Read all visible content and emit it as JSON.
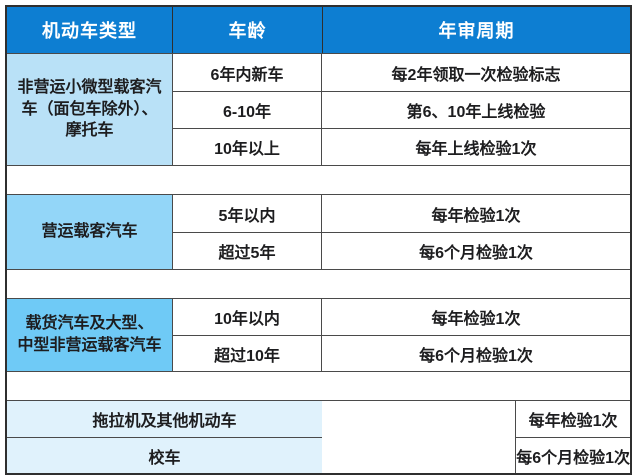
{
  "chart_data": {
    "type": "table",
    "columns": [
      "机动车类型",
      "车龄",
      "年审周期"
    ],
    "groups": [
      {
        "category": "非营运小微型载客汽\n车（面包车除外）、\n摩托车",
        "rows": [
          {
            "age": "6年内新车",
            "cycle": "每2年领取一次检验标志"
          },
          {
            "age": "6-10年",
            "cycle": "第6、10年上线检验"
          },
          {
            "age": "10年以上",
            "cycle": "每年上线检验1次"
          }
        ]
      },
      {
        "category": "营运载客汽车",
        "rows": [
          {
            "age": "5年以内",
            "cycle": "每年检验1次"
          },
          {
            "age": "超过5年",
            "cycle": "每6个月检验1次"
          }
        ]
      },
      {
        "category": "载货汽车及大型、\n中型非营运载客汽车",
        "rows": [
          {
            "age": "10年以内",
            "cycle": "每年检验1次"
          },
          {
            "age": "超过10年",
            "cycle": "每6个月检验1次"
          }
        ]
      }
    ],
    "merged_rows": [
      {
        "category": "拖拉机及其他机动车",
        "cycle": "每年检验1次"
      },
      {
        "category": "校车",
        "cycle": "每6个月检验1次"
      }
    ],
    "layout": {
      "grid": "on",
      "legend": "none"
    }
  },
  "colors": {
    "header_bg": "#0d7ed2",
    "header_text": "#ffffff",
    "group1_bg": "#b9e1f7",
    "group2_bg": "#93d6f8",
    "group3_bg": "#6fcaf6",
    "merged_bg": "#e0f2fc",
    "border": "#4a4a4a",
    "outer_border": "#2f2f2f",
    "text": "#1d1d1f"
  }
}
